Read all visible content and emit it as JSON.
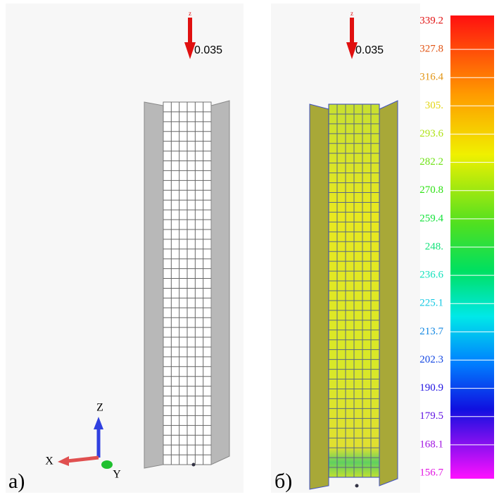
{
  "panel_a": {
    "label": "а)",
    "load": "0.035",
    "load_axis": "z",
    "axes": {
      "x": "X",
      "y": "Y",
      "z": "Z"
    }
  },
  "panel_b": {
    "label": "б)",
    "load": "0.035",
    "load_axis": "z"
  },
  "legend": {
    "labels": [
      "339.2",
      "327.8",
      "316.4",
      "305.",
      "293.6",
      "282.2",
      "270.8",
      "259.4",
      "248.",
      "236.6",
      "225.1",
      "213.7",
      "202.3",
      "190.9",
      "179.5",
      "168.1",
      "156.7"
    ]
  }
}
